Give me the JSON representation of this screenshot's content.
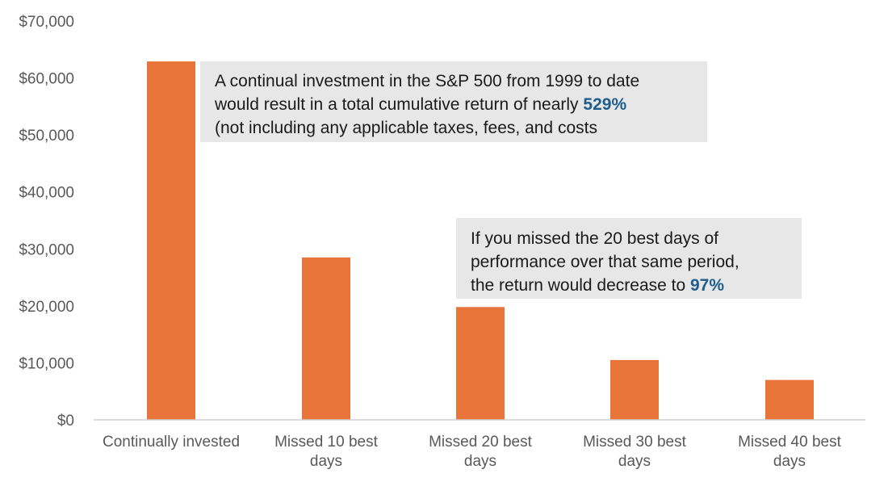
{
  "chart_data": {
    "type": "bar",
    "categories": [
      [
        "Continually invested"
      ],
      [
        "Missed 10 best",
        "days"
      ],
      [
        "Missed 20 best",
        "days"
      ],
      [
        "Missed 30 best",
        "days"
      ],
      [
        "Missed 40 best",
        "days"
      ]
    ],
    "values": [
      62900,
      28500,
      19800,
      10500,
      7000
    ],
    "ylim": [
      0,
      70000
    ],
    "yticks": [
      0,
      10000,
      20000,
      30000,
      40000,
      50000,
      60000,
      70000
    ],
    "ytick_labels": [
      "$0",
      "$10,000",
      "$20,000",
      "$30,000",
      "$40,000",
      "$50,000",
      "$60,000",
      "$70,000"
    ],
    "bar_color": "#e8743a",
    "grid": false,
    "annotations": [
      {
        "lines": [
          "A continual investment in the S&P 500 from 1999 to date",
          "would result in a total cumulative return of nearly "
        ],
        "highlight": "529%",
        "last_line": "(not including any applicable taxes, fees, and costs"
      },
      {
        "lines": [
          "If you missed the 20 best days of",
          "performance over that same period,",
          "the return would decrease to "
        ],
        "highlight": "97%"
      }
    ],
    "highlight_color": "#1f5d8c",
    "callout_background": "#e7e7e7"
  }
}
